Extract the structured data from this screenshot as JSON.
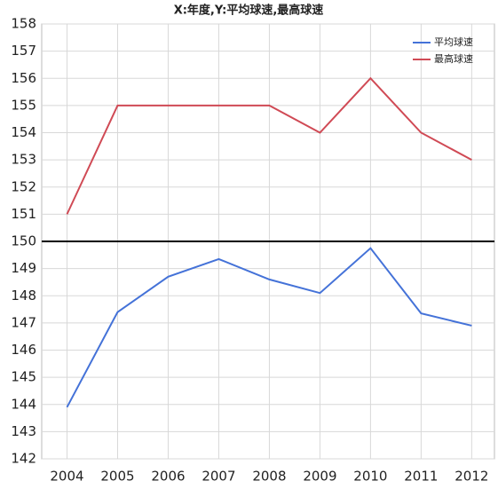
{
  "chart_data": {
    "type": "line",
    "title": "X:年度,Y:平均球速,最高球速",
    "x": [
      2004,
      2005,
      2006,
      2007,
      2008,
      2009,
      2010,
      2011,
      2012
    ],
    "series": [
      {
        "name": "平均球速",
        "color": "#4472d8",
        "values": [
          143.9,
          147.4,
          148.7,
          149.35,
          148.6,
          148.1,
          149.75,
          147.35,
          146.9
        ]
      },
      {
        "name": "最高球速",
        "color": "#d04a55",
        "values": [
          151,
          155,
          155,
          155,
          155,
          154,
          156,
          154,
          153
        ]
      }
    ],
    "xlim": [
      2003.5,
      2012.45
    ],
    "xticks": [
      2004,
      2005,
      2006,
      2007,
      2008,
      2009,
      2010,
      2011,
      2012
    ],
    "ylim": [
      142,
      158
    ],
    "yticks": [
      142,
      143,
      144,
      145,
      146,
      147,
      148,
      149,
      150,
      151,
      152,
      153,
      154,
      155,
      156,
      157,
      158
    ],
    "hline": 150,
    "grid": true,
    "legend": "top-right"
  }
}
